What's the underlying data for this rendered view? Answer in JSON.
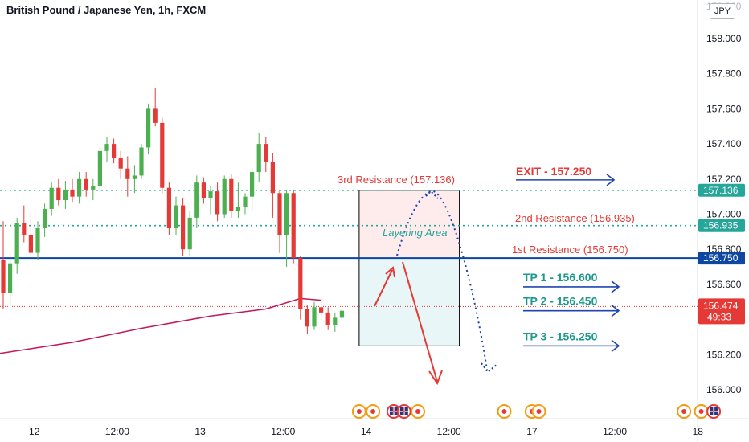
{
  "header": {
    "title": "British Pound / Japanese Yen, 1h, FXCM",
    "currency": "JPY",
    "top_tick": "158.200"
  },
  "colors": {
    "bull": "#4caf50",
    "bear": "#e53935",
    "resistance_dotted": "#26a69a",
    "support_line": "#0d47a1",
    "ma": "#c2185b",
    "arrow_red": "#e53935",
    "arrow_blue": "#1e44b0",
    "exit_text": "#e53935",
    "tp_text": "#1b9a8c",
    "zone_pink": "#fdeceb",
    "zone_blue": "#e8f6f8"
  },
  "chart_data": {
    "type": "candlestick",
    "symbol": "GBPJPY",
    "timeframe": "1h",
    "ylim": [
      155.88,
      158.22
    ],
    "y_ticks": [
      {
        "v": 158.0,
        "label": "158.000"
      },
      {
        "v": 157.8,
        "label": "157.800"
      },
      {
        "v": 157.6,
        "label": "157.600"
      },
      {
        "v": 157.4,
        "label": "157.400"
      },
      {
        "v": 157.2,
        "label": "157.200"
      },
      {
        "v": 157.0,
        "label": "157.000"
      },
      {
        "v": 156.8,
        "label": "156.800"
      },
      {
        "v": 156.6,
        "label": "156.600"
      },
      {
        "v": 156.4,
        "label": "156.400"
      },
      {
        "v": 156.2,
        "label": "156.200"
      },
      {
        "v": 156.0,
        "label": "156.000"
      }
    ],
    "x_ticks": [
      {
        "t": -7.5,
        "label": "12:00"
      },
      {
        "t": 4.5,
        "label": "12"
      },
      {
        "t": 16.5,
        "label": "12:00"
      },
      {
        "t": 28.5,
        "label": "13"
      },
      {
        "t": 40.5,
        "label": "12:00"
      },
      {
        "t": 52.5,
        "label": "14"
      },
      {
        "t": 64.5,
        "label": "12:00"
      },
      {
        "t": 76.5,
        "label": "17"
      },
      {
        "t": 88.5,
        "label": "12:00"
      },
      {
        "t": 100.5,
        "label": "18"
      },
      {
        "t": 112.5,
        "label": "12:"
      }
    ],
    "ohlc": [
      [
        156.74,
        156.96,
        156.46,
        156.55
      ],
      [
        156.55,
        156.78,
        156.48,
        156.72
      ],
      [
        156.72,
        156.98,
        156.66,
        156.95
      ],
      [
        156.95,
        157.05,
        156.84,
        156.88
      ],
      [
        156.88,
        157.01,
        156.75,
        156.78
      ],
      [
        156.78,
        156.96,
        156.74,
        156.92
      ],
      [
        156.92,
        157.06,
        156.87,
        157.03
      ],
      [
        157.03,
        157.18,
        156.99,
        157.15
      ],
      [
        157.15,
        157.2,
        157.05,
        157.08
      ],
      [
        157.08,
        157.19,
        157.03,
        157.14
      ],
      [
        157.14,
        157.2,
        157.07,
        157.1
      ],
      [
        157.1,
        157.24,
        157.06,
        157.2
      ],
      [
        157.2,
        157.24,
        157.1,
        157.14
      ],
      [
        157.14,
        157.2,
        157.08,
        157.16
      ],
      [
        157.16,
        157.38,
        157.13,
        157.36
      ],
      [
        157.36,
        157.44,
        157.3,
        157.4
      ],
      [
        157.4,
        157.43,
        157.29,
        157.32
      ],
      [
        157.32,
        157.36,
        157.2,
        157.26
      ],
      [
        157.26,
        157.33,
        157.1,
        157.2
      ],
      [
        157.2,
        157.28,
        157.12,
        157.22
      ],
      [
        157.22,
        157.4,
        157.2,
        157.38
      ],
      [
        157.38,
        157.63,
        157.34,
        157.6
      ],
      [
        157.6,
        157.72,
        157.5,
        157.52
      ],
      [
        157.52,
        157.55,
        157.12,
        157.15
      ],
      [
        157.15,
        157.18,
        156.88,
        156.92
      ],
      [
        156.92,
        157.1,
        156.88,
        157.05
      ],
      [
        157.05,
        157.09,
        156.76,
        156.8
      ],
      [
        156.8,
        157.02,
        156.76,
        156.98
      ],
      [
        156.98,
        157.22,
        156.92,
        157.18
      ],
      [
        157.18,
        157.21,
        157.06,
        157.09
      ],
      [
        157.09,
        157.16,
        157.0,
        157.13
      ],
      [
        157.13,
        157.18,
        156.96,
        157.0
      ],
      [
        157.0,
        157.22,
        156.98,
        157.2
      ],
      [
        157.2,
        157.23,
        156.98,
        157.02
      ],
      [
        157.02,
        157.18,
        156.98,
        157.04
      ],
      [
        157.04,
        157.12,
        157.0,
        157.1
      ],
      [
        157.1,
        157.26,
        157.02,
        157.24
      ],
      [
        157.24,
        157.46,
        157.18,
        157.4
      ],
      [
        157.4,
        157.44,
        157.24,
        157.3
      ],
      [
        157.3,
        157.35,
        156.98,
        157.12
      ],
      [
        157.12,
        157.14,
        156.78,
        156.88
      ],
      [
        156.88,
        157.14,
        156.7,
        157.12
      ],
      [
        157.12,
        157.14,
        156.72,
        156.75
      ],
      [
        156.75,
        156.76,
        156.4,
        156.46
      ],
      [
        156.46,
        156.48,
        156.32,
        156.36
      ],
      [
        156.36,
        156.5,
        156.34,
        156.47
      ],
      [
        156.47,
        156.52,
        156.4,
        156.44
      ],
      [
        156.44,
        156.47,
        156.34,
        156.37
      ],
      [
        156.37,
        156.44,
        156.33,
        156.41
      ],
      [
        156.41,
        156.46,
        156.39,
        156.45
      ]
    ],
    "ma_line": {
      "t": [
        -21,
        -10,
        0,
        10,
        20,
        30,
        38,
        43,
        46
      ],
      "v": [
        156.11,
        156.15,
        156.21,
        156.27,
        156.35,
        156.42,
        156.46,
        156.52,
        156.51
      ]
    },
    "horizontal_levels": [
      {
        "name": "3rd Resistance",
        "value": 157.136,
        "style": "dotted",
        "axis_label": "157.136"
      },
      {
        "name": "2nd Resistance",
        "value": 156.935,
        "style": "dotted",
        "axis_label": "156.935"
      },
      {
        "name": "1st Resistance",
        "value": 156.75,
        "style": "solid",
        "axis_label": "156.750"
      }
    ],
    "current_price": {
      "value": 156.474,
      "label": "156.474",
      "countdown": "49:33"
    },
    "layering_zone": {
      "top": 157.136,
      "mid": 156.75,
      "bottom": 156.25,
      "t_start": 51.5,
      "t_end": 66.0
    },
    "annotations": {
      "resistance_labels": [
        {
          "text": "3rd Resistance (157.136)",
          "value": 157.2
        },
        {
          "text": "2nd Resistance (156.935)",
          "value": 156.98
        },
        {
          "text": "1st Resistance (156.750)",
          "value": 156.8
        }
      ],
      "layering": "Layering Area",
      "exit": {
        "text": "EXIT - 157.250",
        "value": 157.25
      },
      "take_profits": [
        {
          "text": "TP 1 - 156.600",
          "value": 156.6
        },
        {
          "text": "TP 2 - 156.450",
          "value": 156.45
        },
        {
          "text": "TP 3 - 156.250",
          "value": 156.25
        }
      ]
    },
    "events": [
      {
        "t": 51.5,
        "kind": "dot"
      },
      {
        "t": 53.5,
        "kind": "dot"
      },
      {
        "t": 56.5,
        "kind": "flag-gb"
      },
      {
        "t": 58.0,
        "kind": "flag-gb"
      },
      {
        "t": 60.0,
        "kind": "dot"
      },
      {
        "t": 72.5,
        "kind": "dot"
      },
      {
        "t": 76.5,
        "kind": "dot"
      },
      {
        "t": 77.5,
        "kind": "dot"
      },
      {
        "t": 98.5,
        "kind": "dot"
      },
      {
        "t": 101.0,
        "kind": "dot"
      },
      {
        "t": 102.8,
        "kind": "flag-gb"
      }
    ]
  }
}
